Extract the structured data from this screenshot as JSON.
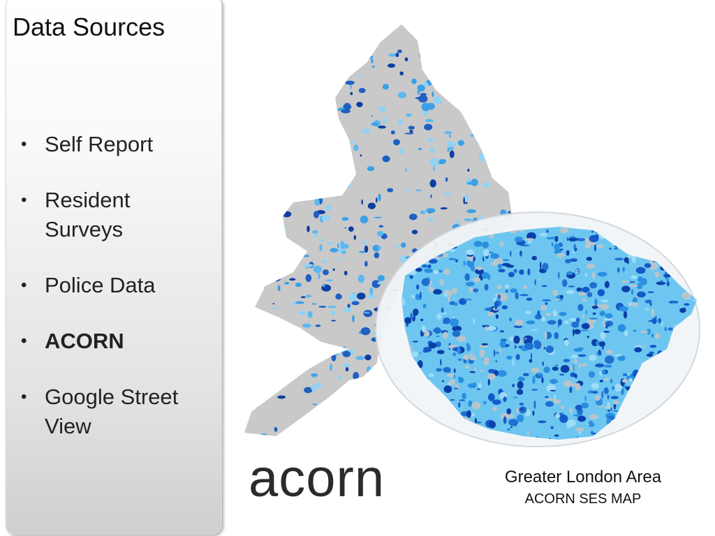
{
  "title": "Data Sources",
  "bullets": [
    "Self Report",
    "Resident Surveys",
    "Police Data",
    "ACORN",
    "Google Street View"
  ],
  "logo": "acorn",
  "caption": {
    "title": "Greater London Area",
    "subtitle": "ACORN SES MAP"
  }
}
